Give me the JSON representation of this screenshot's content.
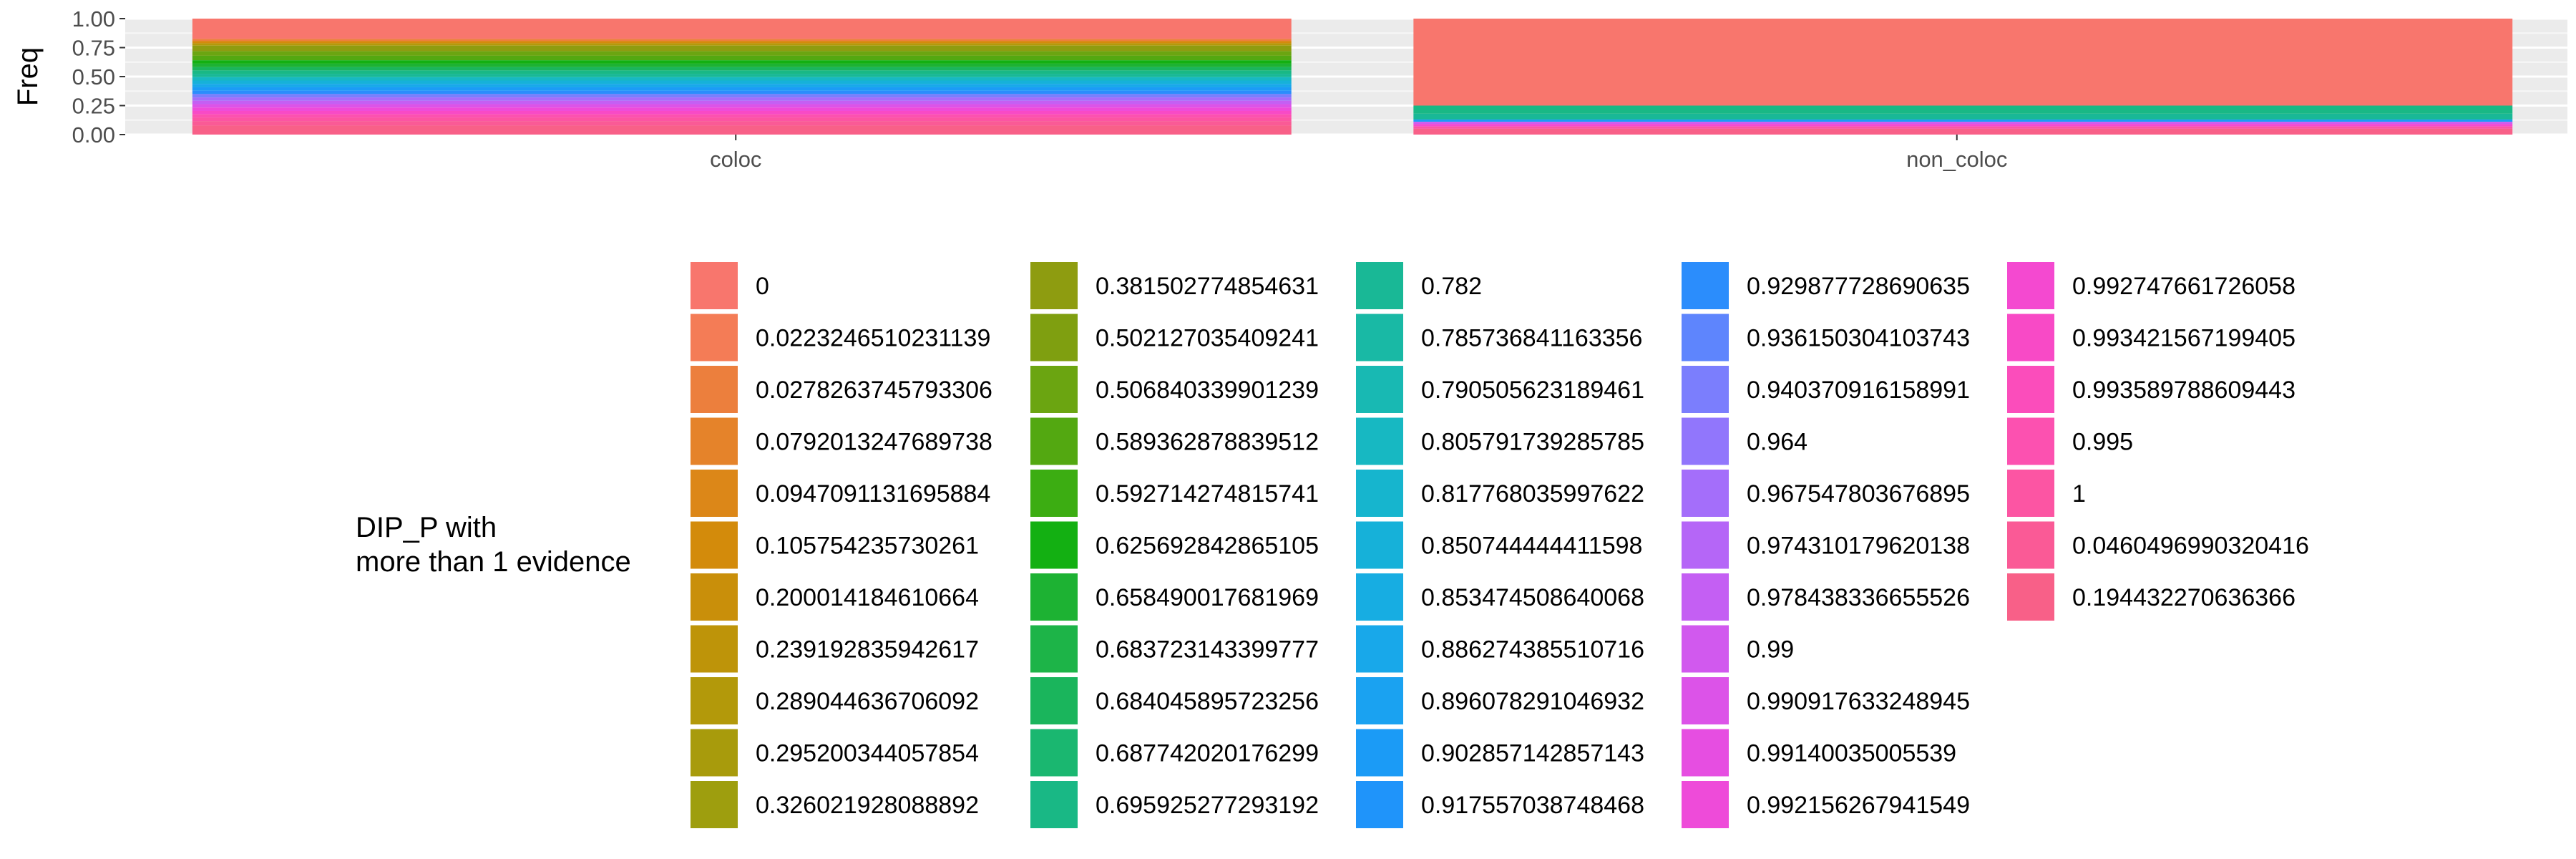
{
  "chart_data": {
    "type": "bar",
    "stacked": true,
    "position": "fill",
    "xlabel": "",
    "ylabel": "Freq",
    "ylim": [
      0,
      1
    ],
    "y_ticks": [
      "0.00",
      "0.25",
      "0.50",
      "0.75",
      "1.00"
    ],
    "categories": [
      "coloc",
      "non_coloc"
    ],
    "legend": {
      "title_lines": [
        "DIP_P with",
        "more than 1 evidence"
      ],
      "placement": "bottom",
      "columns": 5,
      "rows": 11,
      "entries": [
        {
          "label": "0",
          "color": "#F8766D"
        },
        {
          "label": "0.0223246510231139",
          "color": "#F47C56"
        },
        {
          "label": "0.0278263745793306",
          "color": "#EC7F3D"
        },
        {
          "label": "0.0792013247689738",
          "color": "#E5832A"
        },
        {
          "label": "0.0947091131695884",
          "color": "#DC8718"
        },
        {
          "label": "0.105754235730261",
          "color": "#D38B0B"
        },
        {
          "label": "0.200014184610664",
          "color": "#C98F0A"
        },
        {
          "label": "0.239192835942617",
          "color": "#BE9409"
        },
        {
          "label": "0.289044636706092",
          "color": "#B3990A"
        },
        {
          "label": "0.295200344057854",
          "color": "#A89B0C"
        },
        {
          "label": "0.326021928088892",
          "color": "#9E9E0E"
        },
        {
          "label": "0.381502774854631",
          "color": "#8E9C10"
        },
        {
          "label": "0.502127035409241",
          "color": "#7F9F10"
        },
        {
          "label": "0.506840339901239",
          "color": "#6BA511"
        },
        {
          "label": "0.589362878839512",
          "color": "#53A811"
        },
        {
          "label": "0.592714274815741",
          "color": "#3CAD12"
        },
        {
          "label": "0.625692842865105",
          "color": "#13B012"
        },
        {
          "label": "0.658490017681969",
          "color": "#1DB233"
        },
        {
          "label": "0.683723143399777",
          "color": "#1DB448"
        },
        {
          "label": "0.684045895723256",
          "color": "#1AB55C"
        },
        {
          "label": "0.687742020176299",
          "color": "#1AB770"
        },
        {
          "label": "0.695925277293192",
          "color": "#19B885"
        },
        {
          "label": "0.782",
          "color": "#19B896"
        },
        {
          "label": "0.785736841163356",
          "color": "#19B9A5"
        },
        {
          "label": "0.790505623189461",
          "color": "#18B9B3"
        },
        {
          "label": "0.805791739285785",
          "color": "#17B8C2"
        },
        {
          "label": "0.817768035997622",
          "color": "#16B5CE"
        },
        {
          "label": "0.850744444411598",
          "color": "#16B1D9"
        },
        {
          "label": "0.853474508640068",
          "color": "#17ADE2"
        },
        {
          "label": "0.886274385510716",
          "color": "#18A8EA"
        },
        {
          "label": "0.896078291046932",
          "color": "#1AA2F1"
        },
        {
          "label": "0.902857142857143",
          "color": "#1B9BF6"
        },
        {
          "label": "0.917557038748468",
          "color": "#1F94FA"
        },
        {
          "label": "0.929877728690635",
          "color": "#2B8DFC"
        },
        {
          "label": "0.936150304103743",
          "color": "#5E85FD"
        },
        {
          "label": "0.940370916158991",
          "color": "#7B7EFD"
        },
        {
          "label": "0.964",
          "color": "#9176FC"
        },
        {
          "label": "0.967547803676895",
          "color": "#A46EFA"
        },
        {
          "label": "0.974310179620138",
          "color": "#B566F7"
        },
        {
          "label": "0.978438336655526",
          "color": "#C45FF3"
        },
        {
          "label": "0.99",
          "color": "#D159EE"
        },
        {
          "label": "0.990917633248945",
          "color": "#DC53E8"
        },
        {
          "label": "0.99140035005539",
          "color": "#E64EE1"
        },
        {
          "label": "0.992156267941549",
          "color": "#EE4BD9"
        },
        {
          "label": "0.992747661726058",
          "color": "#F449D0"
        },
        {
          "label": "0.993421567199405",
          "color": "#F84AC6"
        },
        {
          "label": "0.993589788609443",
          "color": "#FB4DBB"
        },
        {
          "label": "0.995",
          "color": "#FC51B0"
        },
        {
          "label": "1",
          "color": "#FC55A3"
        },
        {
          "label": "0.0460496990320416",
          "color": "#FA5A96"
        },
        {
          "label": "0.194432270636366",
          "color": "#F86088"
        }
      ]
    },
    "bars": [
      {
        "category": "coloc",
        "segments_top_to_bottom": [
          {
            "label": "0",
            "value": 0.18
          },
          {
            "label": "0.0278263745793306",
            "value": 0.02
          },
          {
            "label": "0.105754235730261",
            "value": 0.02
          },
          {
            "label": "0.289044636706092",
            "value": 0.02
          },
          {
            "label": "0.381502774854631",
            "value": 0.05
          },
          {
            "label": "0.506840339901239",
            "value": 0.04
          },
          {
            "label": "0.589362878839512",
            "value": 0.04
          },
          {
            "label": "0.625692842865105",
            "value": 0.03
          },
          {
            "label": "0.658490017681969",
            "value": 0.03
          },
          {
            "label": "0.684045895723256",
            "value": 0.03
          },
          {
            "label": "0.695925277293192",
            "value": 0.03
          },
          {
            "label": "0.782",
            "value": 0.03
          },
          {
            "label": "0.805791739285785",
            "value": 0.03
          },
          {
            "label": "0.850744444411598",
            "value": 0.03
          },
          {
            "label": "0.886274385510716",
            "value": 0.03
          },
          {
            "label": "0.902857142857143",
            "value": 0.03
          },
          {
            "label": "0.929877728690635",
            "value": 0.03
          },
          {
            "label": "0.940370916158991",
            "value": 0.03
          },
          {
            "label": "0.967547803676895",
            "value": 0.03
          },
          {
            "label": "0.978438336655526",
            "value": 0.03
          },
          {
            "label": "0.990917633248945",
            "value": 0.03
          },
          {
            "label": "0.992156267941549",
            "value": 0.03
          },
          {
            "label": "0.993421567199405",
            "value": 0.03
          },
          {
            "label": "0.995",
            "value": 0.03
          },
          {
            "label": "1",
            "value": 0.03
          },
          {
            "label": "0.0460496990320416",
            "value": 0.04
          },
          {
            "label": "0.194432270636366",
            "value": 0.08
          }
        ]
      },
      {
        "category": "non_coloc",
        "segments_top_to_bottom": [
          {
            "label": "0",
            "value": 0.75
          },
          {
            "label": "0.695925277293192",
            "value": 0.07
          },
          {
            "label": "0.782",
            "value": 0.05
          },
          {
            "label": "0.902857142857143",
            "value": 0.02
          },
          {
            "label": "0.99",
            "value": 0.02
          },
          {
            "label": "0.992747661726058",
            "value": 0.02
          },
          {
            "label": "1",
            "value": 0.02
          },
          {
            "label": "0.194432270636366",
            "value": 0.05
          }
        ]
      }
    ]
  }
}
